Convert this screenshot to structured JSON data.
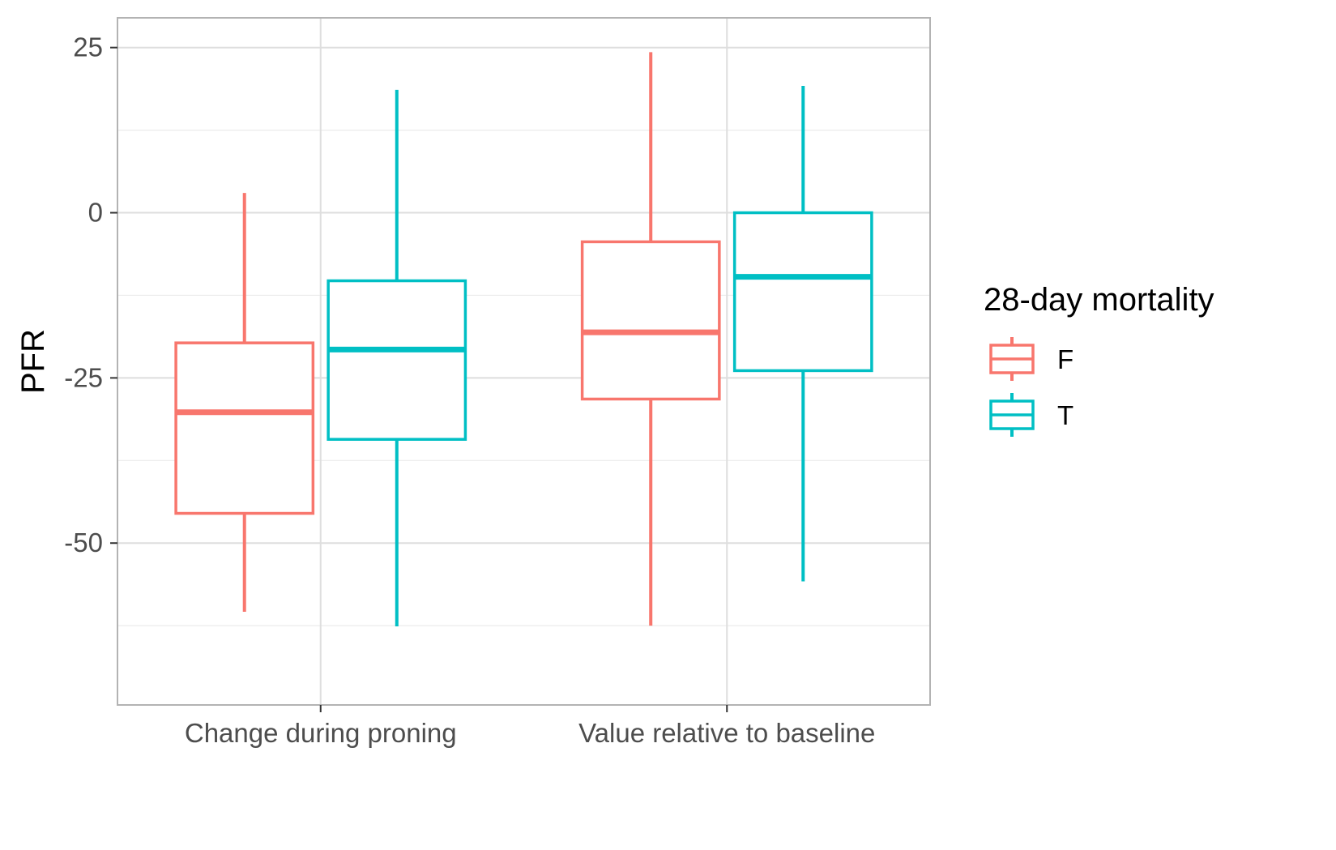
{
  "chart_data": {
    "type": "box",
    "title": "",
    "xlabel": "",
    "ylabel": "PFR",
    "categories": [
      "Change during proning",
      "Value relative to baseline"
    ],
    "y_ticks": [
      25,
      0,
      -25,
      -50
    ],
    "y_tick_labels": [
      "25",
      "0",
      "-25",
      "-50"
    ],
    "ylim": [
      -74.5,
      29.5
    ],
    "grid": true,
    "legend": {
      "title": "28-day mortality",
      "position": "right"
    },
    "series": [
      {
        "name": "F",
        "color": "#F8766D",
        "boxes": [
          {
            "category": "Change during proning",
            "whisker_low": -60.4,
            "q1": -45.5,
            "median": -30.2,
            "q3": -19.7,
            "whisker_high": 3.0
          },
          {
            "category": "Value relative to baseline",
            "whisker_low": -62.5,
            "q1": -28.2,
            "median": -18.1,
            "q3": -4.4,
            "whisker_high": 24.3
          }
        ]
      },
      {
        "name": "T",
        "color": "#00BFC4",
        "boxes": [
          {
            "category": "Change during proning",
            "whisker_low": -62.6,
            "q1": -34.3,
            "median": -20.7,
            "q3": -10.3,
            "whisker_high": 18.6
          },
          {
            "category": "Value relative to baseline",
            "whisker_low": -55.8,
            "q1": -23.9,
            "median": -9.7,
            "q3": 0.0,
            "whisker_high": 19.2
          }
        ]
      }
    ]
  }
}
